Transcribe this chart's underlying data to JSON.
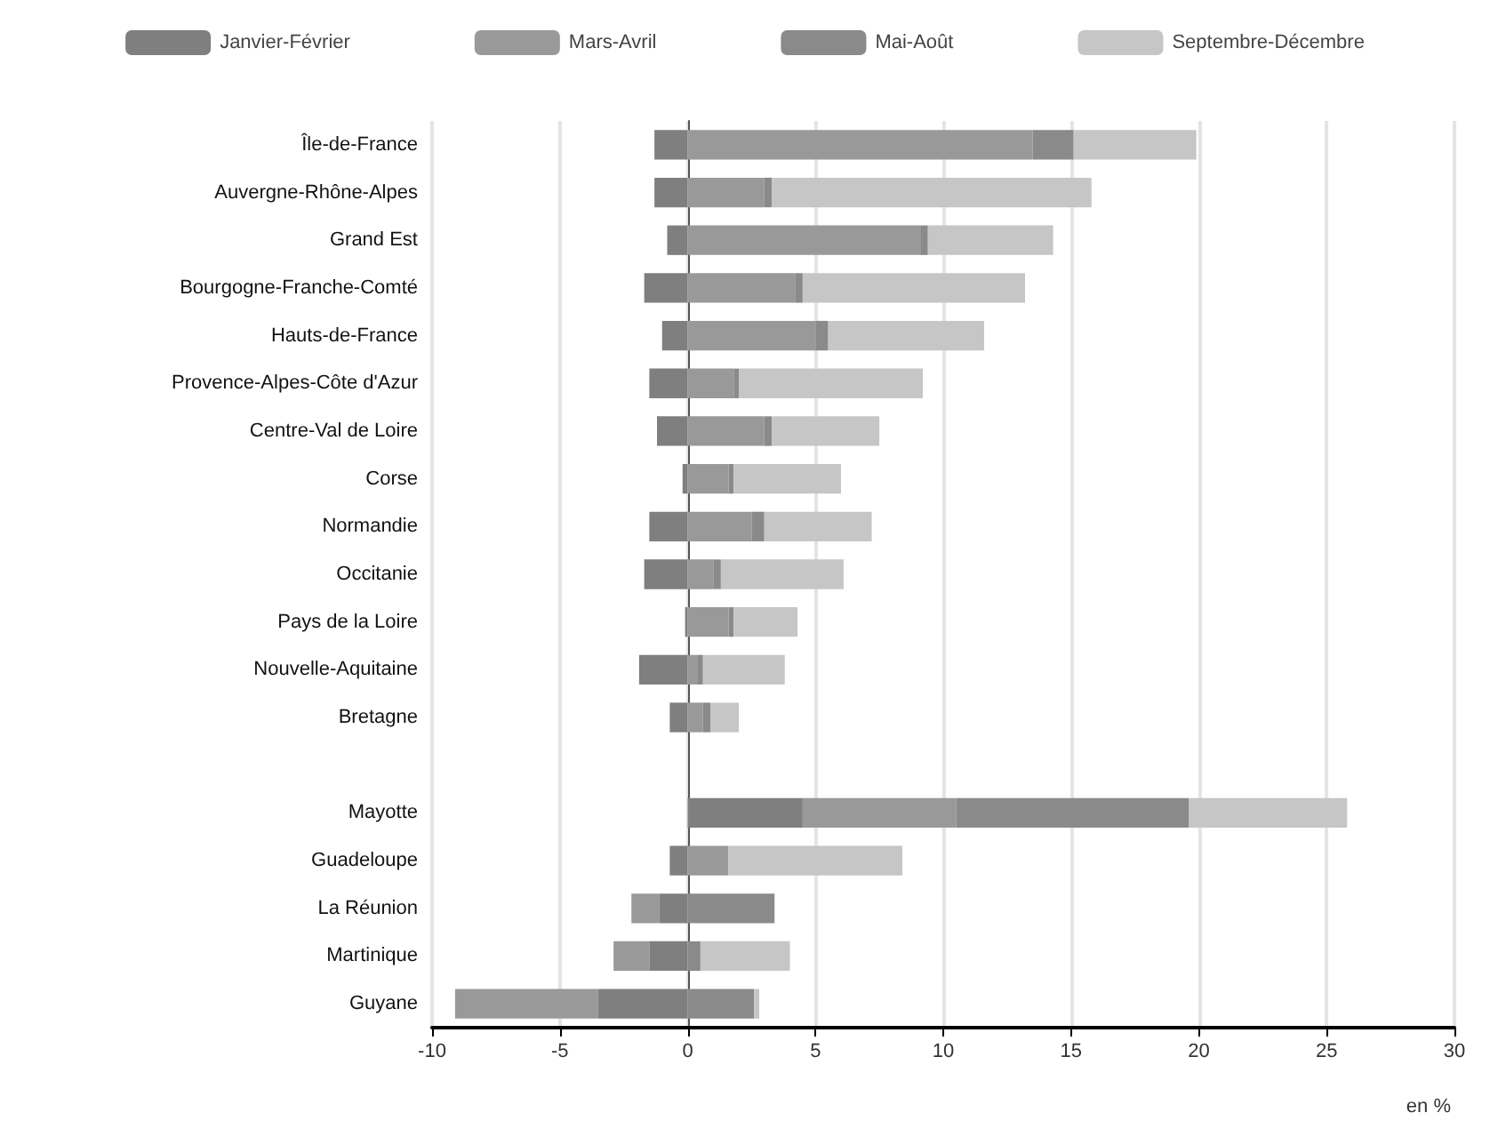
{
  "chart_data": {
    "type": "bar",
    "orientation": "horizontal",
    "stacked": true,
    "categories": [
      "Île-de-France",
      "Auvergne-Rhône-Alpes",
      "Grand Est",
      "Bourgogne-Franche-Comté",
      "Hauts-de-France",
      "Provence-Alpes-Côte d'Azur",
      "Centre-Val de Loire",
      "Corse",
      "Normandie",
      "Occitanie",
      "Pays de la Loire",
      "Nouvelle-Aquitaine",
      "Bretagne",
      null,
      "Mayotte",
      "Guadeloupe",
      "La Réunion",
      "Martinique",
      "Guyane"
    ],
    "series": [
      {
        "name": "Janvier-Février",
        "color": "#7f7f7f",
        "values": [
          -1.3,
          -1.3,
          -0.8,
          -1.7,
          -1.0,
          -1.5,
          -1.2,
          -0.2,
          -1.5,
          -1.7,
          -0.1,
          -1.9,
          -0.7,
          null,
          4.5,
          -0.7,
          -1.1,
          -1.5,
          -3.5
        ]
      },
      {
        "name": "Mars-Avril",
        "color": "#999999",
        "values": [
          13.5,
          3.0,
          9.1,
          4.2,
          5.0,
          1.8,
          3.0,
          1.6,
          2.5,
          1.0,
          1.6,
          0.4,
          0.6,
          null,
          6.0,
          1.6,
          -1.1,
          -1.4,
          -5.6
        ]
      },
      {
        "name": "Mai-Août",
        "color": "#8a8a8a",
        "values": [
          1.6,
          0.3,
          0.3,
          0.3,
          0.5,
          0.2,
          0.3,
          0.2,
          0.5,
          0.3,
          0.2,
          0.2,
          0.3,
          null,
          9.1,
          0.0,
          3.4,
          0.5,
          2.6
        ]
      },
      {
        "name": "Septembre-Décembre",
        "color": "#c6c6c6",
        "values": [
          4.8,
          12.5,
          4.9,
          8.7,
          6.1,
          7.2,
          4.2,
          4.2,
          4.2,
          4.8,
          2.5,
          3.2,
          1.1,
          null,
          6.2,
          6.8,
          0.0,
          3.5,
          0.2
        ]
      }
    ],
    "xlim": [
      -10,
      30
    ],
    "xticks": [
      -10,
      -5,
      0,
      5,
      10,
      15,
      20,
      25,
      30
    ],
    "grid": "x",
    "legend": "top",
    "annotations": [
      "en %"
    ]
  }
}
